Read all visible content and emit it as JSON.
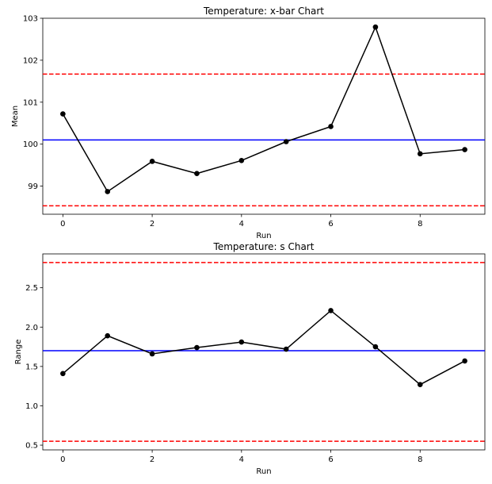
{
  "chart_data": [
    {
      "type": "line",
      "title": "Temperature: x-bar Chart",
      "xlabel": "Run",
      "ylabel": "Mean",
      "x": [
        0,
        1,
        2,
        3,
        4,
        5,
        6,
        7,
        8,
        9
      ],
      "series": [
        {
          "values": [
            100.72,
            98.87,
            99.59,
            99.3,
            99.61,
            100.06,
            100.42,
            102.79,
            99.77,
            99.87
          ],
          "color": "#000000",
          "marker": "circle"
        }
      ],
      "center_line": {
        "value": 100.1,
        "color": "#0000ff",
        "style": "solid"
      },
      "control_limits": {
        "upper": 101.67,
        "lower": 98.53,
        "color": "#ff0000",
        "style": "dashed"
      },
      "xticks": [
        0,
        2,
        4,
        6,
        8
      ],
      "yticks": [
        99,
        100,
        101,
        102,
        103
      ],
      "ytick_labels": [
        "99",
        "100",
        "101",
        "102",
        "103"
      ],
      "xlim": [
        -0.45,
        9.45
      ],
      "ylim": [
        98.33,
        103.0
      ],
      "grid": false
    },
    {
      "type": "line",
      "title": "Temperature: s Chart",
      "xlabel": "Run",
      "ylabel": "Range",
      "x": [
        0,
        1,
        2,
        3,
        4,
        5,
        6,
        7,
        8,
        9
      ],
      "series": [
        {
          "values": [
            1.41,
            1.89,
            1.66,
            1.74,
            1.81,
            1.72,
            2.21,
            1.75,
            1.27,
            1.57
          ],
          "color": "#000000",
          "marker": "circle"
        }
      ],
      "center_line": {
        "value": 1.7,
        "color": "#0000ff",
        "style": "solid"
      },
      "control_limits": {
        "upper": 2.82,
        "lower": 0.55,
        "color": "#ff0000",
        "style": "dashed"
      },
      "xticks": [
        0,
        2,
        4,
        6,
        8
      ],
      "yticks": [
        0.5,
        1.0,
        1.5,
        2.0,
        2.5
      ],
      "ytick_labels": [
        "0.5",
        "1.0",
        "1.5",
        "2.0",
        "2.5"
      ],
      "xlim": [
        -0.45,
        9.45
      ],
      "ylim": [
        0.44,
        2.93
      ],
      "grid": false
    }
  ]
}
